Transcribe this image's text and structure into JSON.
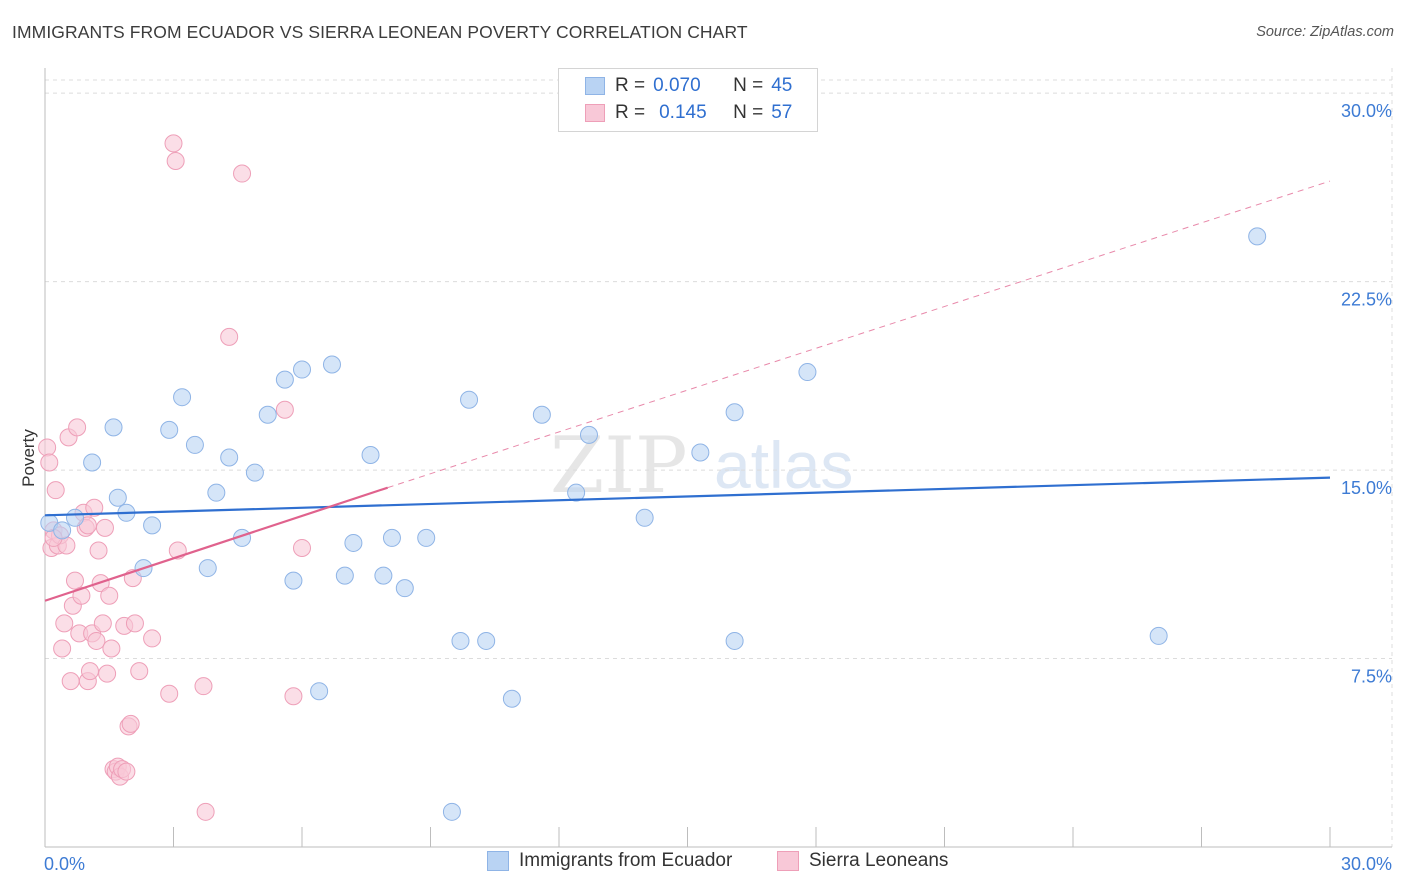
{
  "header": {
    "title": "IMMIGRANTS FROM ECUADOR VS SIERRA LEONEAN POVERTY CORRELATION CHART",
    "source": "Source: ZipAtlas.com"
  },
  "watermark": {
    "zip": "ZIP",
    "atlas": "atlas"
  },
  "legend": {
    "rows": [
      {
        "r_label": "R =",
        "r_value": "0.070",
        "n_label": "N =",
        "n_value": "45"
      },
      {
        "r_label": "R =",
        "r_value": "0.145",
        "n_label": "N =",
        "n_value": "57"
      }
    ]
  },
  "bottom_legend": {
    "series1": "Immigrants from Ecuador",
    "series2": "Sierra Leoneans"
  },
  "colors": {
    "blue_fill": "#b9d3f3",
    "blue_stroke": "#8fb4e6",
    "blue_line": "#2f6fd0",
    "pink_fill": "#f8c8d7",
    "pink_stroke": "#ee9fb8",
    "pink_line": "#e0628d",
    "axis_text": "#3d7bd4",
    "grid": "#dcdcdc"
  },
  "chart_data": {
    "type": "scatter",
    "title": "IMMIGRANTS FROM ECUADOR VS SIERRA LEONEAN POVERTY CORRELATION CHART",
    "xlabel": "",
    "ylabel": "Poverty",
    "xlim": [
      0,
      30
    ],
    "ylim": [
      0,
      31
    ],
    "x_tick_labels": [
      {
        "value": 0,
        "label": "0.0%"
      },
      {
        "value": 30,
        "label": "30.0%"
      }
    ],
    "y_ticks": [
      {
        "value": 7.5,
        "label": "7.5%"
      },
      {
        "value": 15.0,
        "label": "15.0%"
      },
      {
        "value": 22.5,
        "label": "22.5%"
      },
      {
        "value": 30.0,
        "label": "30.0%"
      }
    ],
    "grid": true,
    "series": [
      {
        "name": "Immigrants from Ecuador",
        "R": 0.07,
        "N": 45,
        "trend": {
          "x1": 0,
          "y1": 13.2,
          "x2": 30,
          "y2": 14.7,
          "style": "solid"
        },
        "points": [
          [
            0.1,
            12.9
          ],
          [
            0.4,
            12.6
          ],
          [
            0.7,
            13.1
          ],
          [
            1.1,
            15.3
          ],
          [
            1.6,
            16.7
          ],
          [
            1.7,
            13.9
          ],
          [
            1.9,
            13.3
          ],
          [
            2.3,
            11.1
          ],
          [
            2.5,
            12.8
          ],
          [
            2.9,
            16.6
          ],
          [
            3.2,
            17.9
          ],
          [
            3.5,
            16.0
          ],
          [
            3.8,
            11.1
          ],
          [
            4.0,
            14.1
          ],
          [
            4.3,
            15.5
          ],
          [
            4.6,
            12.3
          ],
          [
            4.9,
            14.9
          ],
          [
            5.2,
            17.2
          ],
          [
            5.6,
            18.6
          ],
          [
            5.8,
            10.6
          ],
          [
            6.0,
            19.0
          ],
          [
            6.4,
            6.2
          ],
          [
            6.7,
            19.2
          ],
          [
            7.0,
            10.8
          ],
          [
            7.2,
            12.1
          ],
          [
            7.6,
            15.6
          ],
          [
            7.9,
            10.8
          ],
          [
            8.1,
            12.3
          ],
          [
            8.4,
            10.3
          ],
          [
            8.9,
            12.3
          ],
          [
            9.7,
            8.2
          ],
          [
            9.9,
            17.8
          ],
          [
            10.3,
            8.2
          ],
          [
            10.9,
            5.9
          ],
          [
            11.6,
            17.2
          ],
          [
            12.4,
            14.1
          ],
          [
            12.7,
            16.4
          ],
          [
            14.0,
            13.1
          ],
          [
            15.3,
            15.7
          ],
          [
            16.1,
            17.3
          ],
          [
            16.1,
            8.2
          ],
          [
            17.8,
            18.9
          ],
          [
            26.0,
            8.4
          ],
          [
            28.3,
            24.3
          ],
          [
            9.5,
            1.4
          ]
        ]
      },
      {
        "name": "Sierra Leoneans",
        "R": 0.145,
        "N": 57,
        "trend": {
          "x1": 0,
          "y1": 9.8,
          "x2": 8,
          "y2": 14.3,
          "style": "solid",
          "extension": {
            "x1": 8,
            "y1": 14.3,
            "x2": 30,
            "y2": 26.5,
            "style": "dashed"
          }
        },
        "points": [
          [
            0.05,
            15.9
          ],
          [
            0.1,
            15.3
          ],
          [
            0.15,
            11.9
          ],
          [
            0.2,
            12.6
          ],
          [
            0.25,
            14.2
          ],
          [
            0.3,
            12.0
          ],
          [
            0.35,
            12.4
          ],
          [
            0.4,
            7.9
          ],
          [
            0.45,
            8.9
          ],
          [
            0.5,
            12.0
          ],
          [
            0.55,
            16.3
          ],
          [
            0.6,
            6.6
          ],
          [
            0.65,
            9.6
          ],
          [
            0.7,
            10.6
          ],
          [
            0.75,
            16.7
          ],
          [
            0.8,
            8.5
          ],
          [
            0.85,
            10.0
          ],
          [
            0.9,
            13.3
          ],
          [
            0.95,
            12.7
          ],
          [
            1.0,
            6.6
          ],
          [
            1.05,
            7.0
          ],
          [
            1.1,
            8.5
          ],
          [
            1.15,
            13.5
          ],
          [
            1.2,
            8.2
          ],
          [
            1.25,
            11.8
          ],
          [
            1.3,
            10.5
          ],
          [
            1.35,
            8.9
          ],
          [
            1.4,
            12.7
          ],
          [
            1.45,
            6.9
          ],
          [
            1.5,
            10.0
          ],
          [
            1.55,
            7.9
          ],
          [
            1.6,
            3.1
          ],
          [
            1.65,
            3.0
          ],
          [
            1.7,
            3.2
          ],
          [
            1.75,
            2.8
          ],
          [
            1.8,
            3.1
          ],
          [
            1.85,
            8.8
          ],
          [
            1.9,
            3.0
          ],
          [
            1.95,
            4.8
          ],
          [
            2.0,
            4.9
          ],
          [
            2.05,
            10.7
          ],
          [
            2.1,
            8.9
          ],
          [
            2.2,
            7.0
          ],
          [
            2.5,
            8.3
          ],
          [
            2.9,
            6.1
          ],
          [
            3.0,
            28.0
          ],
          [
            3.05,
            27.3
          ],
          [
            3.1,
            11.8
          ],
          [
            3.7,
            6.4
          ],
          [
            3.75,
            1.4
          ],
          [
            4.3,
            20.3
          ],
          [
            4.6,
            26.8
          ],
          [
            5.6,
            17.4
          ],
          [
            5.8,
            6.0
          ],
          [
            6.0,
            11.9
          ],
          [
            0.2,
            12.3
          ],
          [
            1.0,
            12.8
          ]
        ]
      }
    ]
  }
}
